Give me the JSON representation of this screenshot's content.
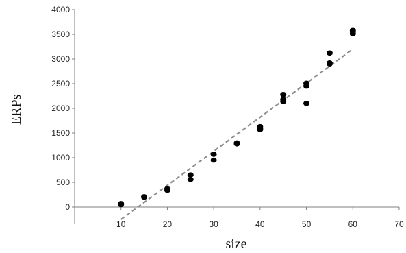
{
  "chart_data": {
    "type": "scatter",
    "xlabel": "size",
    "ylabel": "ERPs",
    "xlim": [
      0,
      70
    ],
    "ylim": [
      0,
      4000
    ],
    "x_ticks": [
      "10",
      "20",
      "30",
      "40",
      "50",
      "60",
      "70"
    ],
    "y_ticks": [
      "0",
      "500",
      "1000",
      "1500",
      "2000",
      "2500",
      "3000",
      "3500",
      "4000"
    ],
    "grid": false,
    "legend": "none",
    "series": [
      {
        "marker_color": "#000000",
        "points": [
          {
            "x": 10,
            "y": 70
          },
          {
            "x": 10,
            "y": 50
          },
          {
            "x": 15,
            "y": 210
          },
          {
            "x": 15,
            "y": 200
          },
          {
            "x": 20,
            "y": 370
          },
          {
            "x": 20,
            "y": 340
          },
          {
            "x": 25,
            "y": 650
          },
          {
            "x": 25,
            "y": 560
          },
          {
            "x": 30,
            "y": 1070
          },
          {
            "x": 30,
            "y": 950
          },
          {
            "x": 35,
            "y": 1300
          },
          {
            "x": 35,
            "y": 1280
          },
          {
            "x": 40,
            "y": 1630
          },
          {
            "x": 40,
            "y": 1590
          },
          {
            "x": 40,
            "y": 1570
          },
          {
            "x": 45,
            "y": 2280
          },
          {
            "x": 45,
            "y": 2180
          },
          {
            "x": 45,
            "y": 2140
          },
          {
            "x": 50,
            "y": 2510
          },
          {
            "x": 50,
            "y": 2450
          },
          {
            "x": 50,
            "y": 2100
          },
          {
            "x": 55,
            "y": 3120
          },
          {
            "x": 55,
            "y": 2920
          },
          {
            "x": 55,
            "y": 2900
          },
          {
            "x": 60,
            "y": 3580
          },
          {
            "x": 60,
            "y": 3550
          },
          {
            "x": 60,
            "y": 3510
          }
        ]
      }
    ],
    "trendline": {
      "style": "dashed",
      "color": "#8c8c8c",
      "from": {
        "x": 10,
        "y": -250
      },
      "to": {
        "x": 60,
        "y": 3200
      }
    }
  }
}
